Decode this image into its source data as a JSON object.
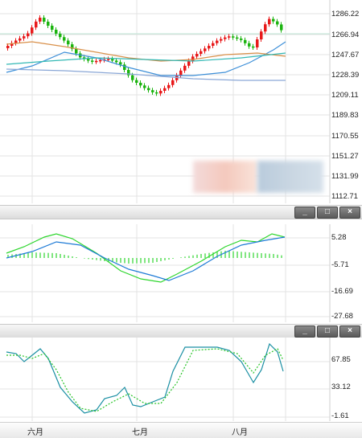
{
  "main_chart": {
    "y_labels": [
      "1286.22",
      "1266.94",
      "1247.67",
      "1228.39",
      "1209.11",
      "1189.83",
      "1170.55",
      "1151.27",
      "1131.99",
      "1112.71"
    ]
  },
  "macd_chart": {
    "y_labels": [
      "5.28",
      "-5.71",
      "-16.69",
      "-27.68"
    ]
  },
  "kdj_chart": {
    "y_labels": [
      "67.85",
      "33.12",
      "-1.61"
    ]
  },
  "x_axis": {
    "labels": [
      "六月",
      "七月",
      "八月"
    ]
  },
  "window_buttons": {
    "minimize": "_",
    "restore": "□",
    "close": "×"
  },
  "colors": {
    "up": "#e8191a",
    "down": "#1bb40f",
    "ma_blue": "#3d8fd8",
    "ma_orange": "#d9904a",
    "ma_teal": "#34b9b5",
    "ma_slate": "#8aa7d6",
    "macd_green": "#2ed62e",
    "macd_blue": "#1e7bd6",
    "kdj_teal": "#1a8fa3",
    "kdj_green": "#27c427"
  }
}
